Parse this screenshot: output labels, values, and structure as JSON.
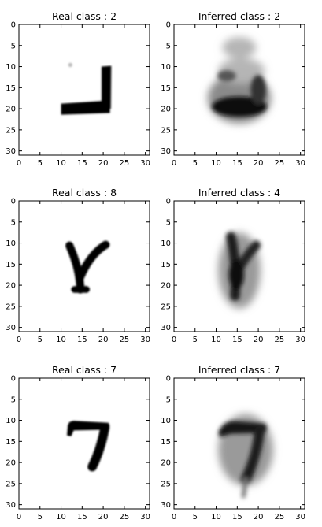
{
  "chart_data": [
    {
      "type": "heatmap",
      "title": "Real class : 2",
      "xlim": [
        0,
        31
      ],
      "ylim": [
        31,
        0
      ],
      "xticks": [
        0,
        5,
        10,
        15,
        20,
        25,
        30
      ],
      "yticks": [
        0,
        5,
        10,
        15,
        20,
        25,
        30
      ],
      "grid": false,
      "colormap": "gray_r",
      "image": "real-digit-2"
    },
    {
      "type": "heatmap",
      "title": "Inferred class : 2",
      "xlim": [
        0,
        31
      ],
      "ylim": [
        31,
        0
      ],
      "xticks": [
        0,
        5,
        10,
        15,
        20,
        25,
        30
      ],
      "yticks": [
        0,
        5,
        10,
        15,
        20,
        25,
        30
      ],
      "grid": false,
      "colormap": "gray_r",
      "image": "inferred-digit-2"
    },
    {
      "type": "heatmap",
      "title": "Real class : 8",
      "xlim": [
        0,
        31
      ],
      "ylim": [
        31,
        0
      ],
      "xticks": [
        0,
        5,
        10,
        15,
        20,
        25,
        30
      ],
      "yticks": [
        0,
        5,
        10,
        15,
        20,
        25,
        30
      ],
      "grid": false,
      "colormap": "gray_r",
      "image": "real-digit-8"
    },
    {
      "type": "heatmap",
      "title": "Inferred class : 4",
      "xlim": [
        0,
        31
      ],
      "ylim": [
        31,
        0
      ],
      "xticks": [
        0,
        5,
        10,
        15,
        20,
        25,
        30
      ],
      "yticks": [
        0,
        5,
        10,
        15,
        20,
        25,
        30
      ],
      "grid": false,
      "colormap": "gray_r",
      "image": "inferred-digit-4"
    },
    {
      "type": "heatmap",
      "title": "Real class : 7",
      "xlim": [
        0,
        31
      ],
      "ylim": [
        31,
        0
      ],
      "xticks": [
        0,
        5,
        10,
        15,
        20,
        25,
        30
      ],
      "yticks": [
        0,
        5,
        10,
        15,
        20,
        25,
        30
      ],
      "grid": false,
      "colormap": "gray_r",
      "image": "real-digit-7"
    },
    {
      "type": "heatmap",
      "title": "Inferred class : 7",
      "xlim": [
        0,
        31
      ],
      "ylim": [
        31,
        0
      ],
      "xticks": [
        0,
        5,
        10,
        15,
        20,
        25,
        30
      ],
      "yticks": [
        0,
        5,
        10,
        15,
        20,
        25,
        30
      ],
      "grid": false,
      "colormap": "gray_r",
      "image": "inferred-digit-7"
    }
  ]
}
